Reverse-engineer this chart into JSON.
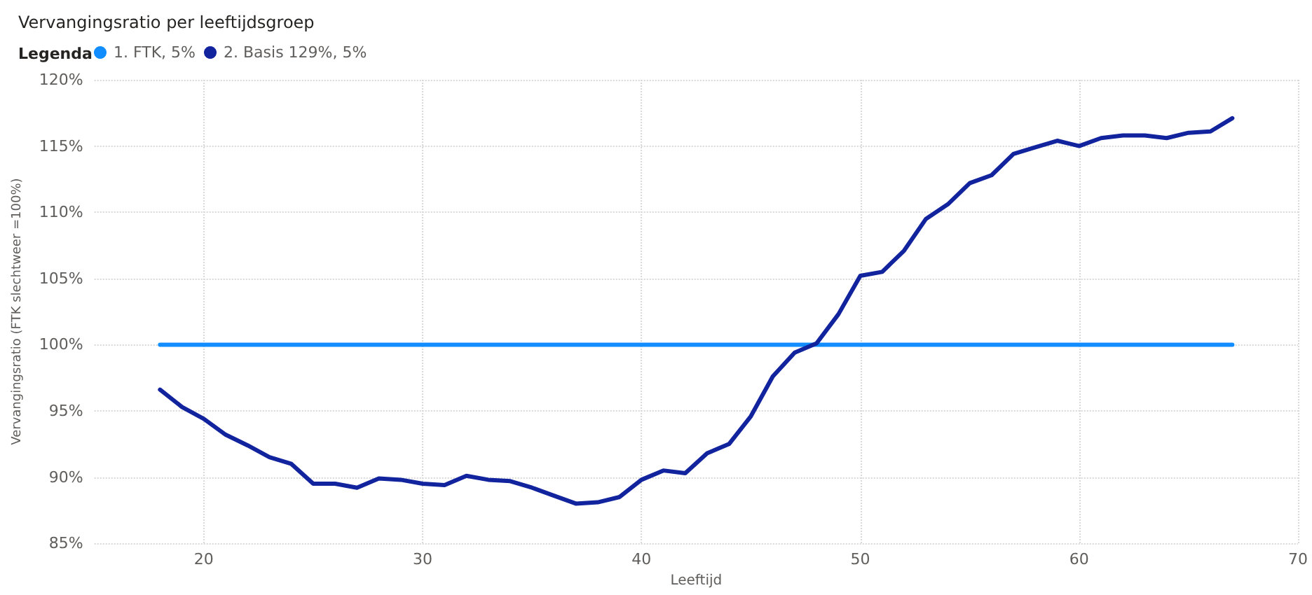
{
  "chart_data": {
    "type": "line",
    "title": "Vervangingsratio per leeftijdsgroep",
    "legend_title": "Legenda",
    "legend": "top left",
    "xlabel": "Leeftijd",
    "ylabel": "Vervangingsratio (FTK slechtweer =100%)",
    "xlim": [
      15,
      70
    ],
    "xticks": [
      20,
      30,
      40,
      50,
      60,
      70
    ],
    "ylim": [
      85,
      120
    ],
    "yticks": [
      {
        "value": 85,
        "label": "85%"
      },
      {
        "value": 90,
        "label": "90%"
      },
      {
        "value": 95,
        "label": "95%"
      },
      {
        "value": 100,
        "label": "100%"
      },
      {
        "value": 105,
        "label": "105%"
      },
      {
        "value": 110,
        "label": "110%"
      },
      {
        "value": 115,
        "label": "115%"
      },
      {
        "value": 120,
        "label": "120%"
      }
    ],
    "grid": true,
    "marker": "none",
    "line_style": "solid",
    "series": [
      {
        "name": "1. FTK, 5%",
        "color": "#118dff",
        "x": [
          18,
          67
        ],
        "values": [
          100,
          100
        ]
      },
      {
        "name": "2. Basis 129%, 5%",
        "color": "#12239e",
        "x": [
          18,
          19,
          20,
          21,
          22,
          23,
          24,
          25,
          26,
          27,
          28,
          29,
          30,
          31,
          32,
          33,
          34,
          35,
          36,
          37,
          38,
          39,
          40,
          41,
          42,
          43,
          44,
          45,
          46,
          47,
          48,
          49,
          50,
          51,
          52,
          53,
          54,
          55,
          56,
          57,
          58,
          59,
          60,
          61,
          62,
          63,
          64,
          65,
          66,
          67
        ],
        "values": [
          96.6,
          95.3,
          94.4,
          93.2,
          92.4,
          91.5,
          91.0,
          89.5,
          89.5,
          89.2,
          89.9,
          89.8,
          89.5,
          89.4,
          90.1,
          89.8,
          89.7,
          89.2,
          88.6,
          88.0,
          88.1,
          88.5,
          89.8,
          90.5,
          90.3,
          91.8,
          92.5,
          94.6,
          97.6,
          99.4,
          100.1,
          102.3,
          105.2,
          105.5,
          107.1,
          109.5,
          110.6,
          112.2,
          112.8,
          114.4,
          114.9,
          115.4,
          115.0,
          115.6,
          115.8,
          115.8,
          115.6,
          116.0,
          116.1,
          117.1
        ]
      }
    ]
  }
}
